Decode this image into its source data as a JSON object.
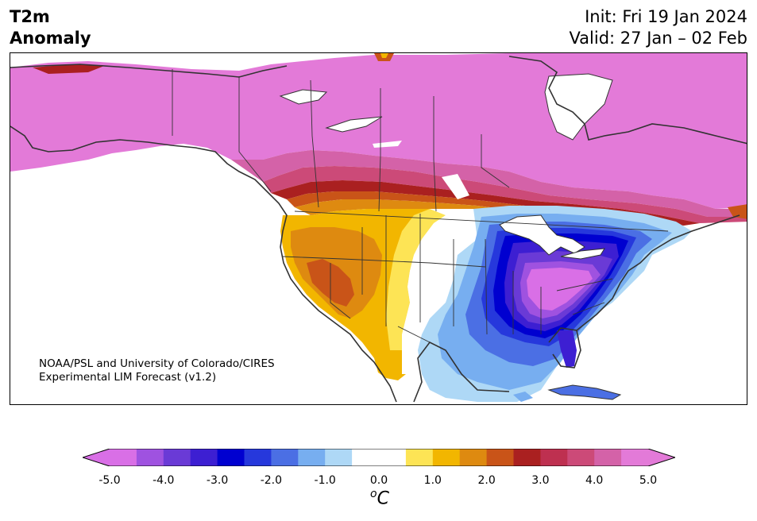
{
  "title": {
    "variable": "T2m",
    "subtitle": "Anomaly",
    "init": "Init: Fri 19 Jan 2024",
    "valid": "Valid: 27 Jan – 02 Feb"
  },
  "credit": {
    "line1": "NOAA/PSL and University of Colorado/CIRES",
    "line2": "Experimental LIM Forecast (v1.2)"
  },
  "colorbar": {
    "unit_label": "C",
    "unit_prefix": "o",
    "tick_labels": [
      "-5.0",
      "-4.0",
      "-3.0",
      "-2.0",
      "-1.0",
      "0.0",
      "1.0",
      "2.0",
      "3.0",
      "4.0",
      "5.0"
    ],
    "colors": [
      "#d96fe6",
      "#9f52e0",
      "#6a3ad6",
      "#3d1fd2",
      "#0000d0",
      "#2638dc",
      "#4b6fe4",
      "#77aef0",
      "#aed8f6",
      "#ffffff",
      "#ffffff",
      "#fde455",
      "#f2b600",
      "#de8a10",
      "#c95418",
      "#aa2020",
      "#be3050",
      "#cc4a78",
      "#d462a8",
      "#e37ad8"
    ]
  }
}
